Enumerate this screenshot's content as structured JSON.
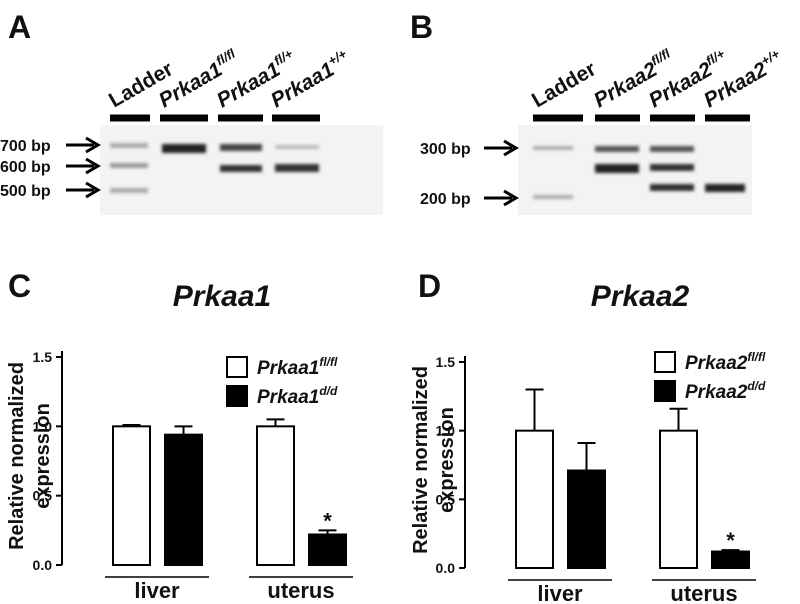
{
  "gels": [
    {
      "panel": "A",
      "lanes": [
        {
          "text": "Ladder"
        },
        {
          "text": "Prkaa1",
          "sup": "fl/fl"
        },
        {
          "text": "Prkaa1",
          "sup": "fl/+"
        },
        {
          "text": "Prkaa1",
          "sup": "+/+"
        }
      ],
      "markers": [
        "700 bp",
        "600 bp",
        "500 bp"
      ]
    },
    {
      "panel": "B",
      "lanes": [
        {
          "text": "Ladder"
        },
        {
          "text": "Prkaa2",
          "sup": "fl/fl"
        },
        {
          "text": "Prkaa2",
          "sup": "fl/+"
        },
        {
          "text": "Prkaa2",
          "sup": "+/+"
        }
      ],
      "markers": [
        "300 bp",
        "200 bp"
      ]
    }
  ],
  "chart_data": [
    {
      "type": "bar",
      "panel": "C",
      "title": "Prkaa1",
      "ylabel": [
        "Relative normalized",
        "expression"
      ],
      "categories": [
        "liver",
        "uterus"
      ],
      "series": [
        {
          "name": "Prkaa1",
          "name_sup": "fl/fl",
          "color": "#ffffff",
          "values": [
            1.0,
            1.0
          ],
          "errors": [
            0.01,
            0.05
          ]
        },
        {
          "name": "Prkaa1",
          "name_sup": "d/d",
          "color": "#000000",
          "values": [
            0.94,
            0.22
          ],
          "errors": [
            0.06,
            0.03
          ]
        }
      ],
      "annotation": "*",
      "ylim": [
        0,
        1.5
      ],
      "yticks": [
        {
          "value": 0,
          "label": "0.0"
        },
        0.5,
        {
          "value": 1,
          "label": "1.0"
        },
        1.5
      ]
    },
    {
      "type": "bar",
      "panel": "D",
      "title": "Prkaa2",
      "ylabel": [
        "Relative normalized",
        "expression"
      ],
      "categories": [
        "liver",
        "uterus"
      ],
      "series": [
        {
          "name": "Prkaa2",
          "name_sup": "fl/fl",
          "color": "#ffffff",
          "values": [
            1.0,
            1.0
          ],
          "errors": [
            0.3,
            0.16
          ]
        },
        {
          "name": "Prkaa2",
          "name_sup": "d/d",
          "color": "#000000",
          "values": [
            0.71,
            0.12
          ],
          "errors": [
            0.2,
            0.01
          ]
        }
      ],
      "annotation": "*",
      "ylim": [
        0,
        1.5
      ],
      "yticks": [
        {
          "value": 0,
          "label": "0.0"
        },
        0.5,
        {
          "value": 1,
          "label": "1.0"
        },
        1.5
      ]
    }
  ]
}
